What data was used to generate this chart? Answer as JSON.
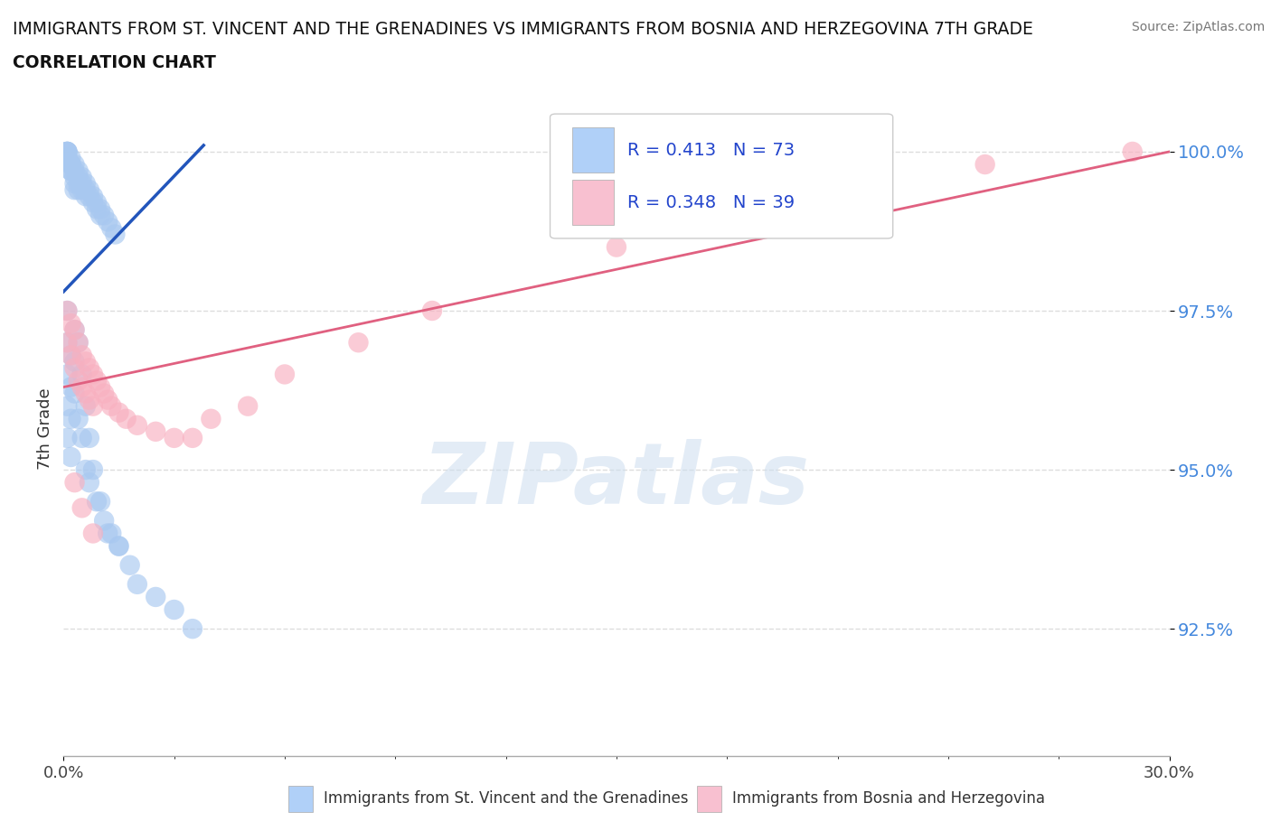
{
  "title_line1": "IMMIGRANTS FROM ST. VINCENT AND THE GRENADINES VS IMMIGRANTS FROM BOSNIA AND HERZEGOVINA 7TH GRADE",
  "title_line2": "CORRELATION CHART",
  "source": "Source: ZipAtlas.com",
  "xlabel_blue": "Immigrants from St. Vincent and the Grenadines",
  "xlabel_pink": "Immigrants from Bosnia and Herzegovina",
  "ylabel": "7th Grade",
  "xlim": [
    0.0,
    0.3
  ],
  "ylim": [
    0.905,
    1.008
  ],
  "ytick_vals": [
    0.925,
    0.95,
    0.975,
    1.0
  ],
  "ytick_labels": [
    "92.5%",
    "95.0%",
    "97.5%",
    "100.0%"
  ],
  "xtick_vals": [
    0.0,
    0.3
  ],
  "xtick_labels": [
    "0.0%",
    "30.0%"
  ],
  "blue_R": 0.413,
  "blue_N": 73,
  "pink_R": 0.348,
  "pink_N": 39,
  "blue_dot_color": "#a8c8f0",
  "pink_dot_color": "#f8b0c0",
  "blue_line_color": "#2255bb",
  "pink_line_color": "#e06080",
  "legend_box_blue": "#b0d0f8",
  "legend_box_pink": "#f8c0d0",
  "watermark_text": "ZIPatlas",
  "watermark_color": "#ccddef",
  "blue_x": [
    0.001,
    0.001,
    0.001,
    0.001,
    0.001,
    0.001,
    0.001,
    0.002,
    0.002,
    0.002,
    0.002,
    0.002,
    0.002,
    0.003,
    0.003,
    0.003,
    0.003,
    0.003,
    0.004,
    0.004,
    0.004,
    0.004,
    0.005,
    0.005,
    0.005,
    0.006,
    0.006,
    0.006,
    0.007,
    0.007,
    0.008,
    0.008,
    0.009,
    0.009,
    0.01,
    0.01,
    0.011,
    0.012,
    0.013,
    0.014,
    0.001,
    0.001,
    0.001,
    0.002,
    0.002,
    0.003,
    0.003,
    0.004,
    0.005,
    0.006,
    0.007,
    0.008,
    0.01,
    0.012,
    0.015,
    0.018,
    0.02,
    0.025,
    0.03,
    0.035,
    0.001,
    0.001,
    0.002,
    0.002,
    0.003,
    0.004,
    0.005,
    0.006,
    0.007,
    0.009,
    0.011,
    0.013,
    0.015
  ],
  "blue_y": [
    1.0,
    1.0,
    1.0,
    1.0,
    0.999,
    0.999,
    0.999,
    0.999,
    0.998,
    0.998,
    0.998,
    0.997,
    0.997,
    0.998,
    0.997,
    0.996,
    0.995,
    0.994,
    0.997,
    0.996,
    0.995,
    0.994,
    0.996,
    0.995,
    0.994,
    0.995,
    0.994,
    0.993,
    0.994,
    0.993,
    0.993,
    0.992,
    0.992,
    0.991,
    0.991,
    0.99,
    0.99,
    0.989,
    0.988,
    0.987,
    0.975,
    0.97,
    0.965,
    0.968,
    0.963,
    0.972,
    0.967,
    0.97,
    0.965,
    0.96,
    0.955,
    0.95,
    0.945,
    0.94,
    0.938,
    0.935,
    0.932,
    0.93,
    0.928,
    0.925,
    0.96,
    0.955,
    0.958,
    0.952,
    0.962,
    0.958,
    0.955,
    0.95,
    0.948,
    0.945,
    0.942,
    0.94,
    0.938
  ],
  "pink_x": [
    0.001,
    0.001,
    0.002,
    0.002,
    0.003,
    0.003,
    0.004,
    0.004,
    0.005,
    0.005,
    0.006,
    0.006,
    0.007,
    0.007,
    0.008,
    0.008,
    0.009,
    0.01,
    0.011,
    0.012,
    0.013,
    0.015,
    0.017,
    0.02,
    0.025,
    0.03,
    0.035,
    0.04,
    0.05,
    0.06,
    0.08,
    0.1,
    0.15,
    0.2,
    0.25,
    0.29,
    0.003,
    0.005,
    0.008
  ],
  "pink_y": [
    0.975,
    0.97,
    0.973,
    0.968,
    0.972,
    0.966,
    0.97,
    0.964,
    0.968,
    0.963,
    0.967,
    0.962,
    0.966,
    0.961,
    0.965,
    0.96,
    0.964,
    0.963,
    0.962,
    0.961,
    0.96,
    0.959,
    0.958,
    0.957,
    0.956,
    0.955,
    0.955,
    0.958,
    0.96,
    0.965,
    0.97,
    0.975,
    0.985,
    0.992,
    0.998,
    1.0,
    0.948,
    0.944,
    0.94
  ],
  "blue_trend_x0": 0.0,
  "blue_trend_x1": 0.038,
  "blue_trend_y0": 0.978,
  "blue_trend_y1": 1.001,
  "pink_trend_x0": 0.0,
  "pink_trend_x1": 0.3,
  "pink_trend_y0": 0.963,
  "pink_trend_y1": 1.0
}
